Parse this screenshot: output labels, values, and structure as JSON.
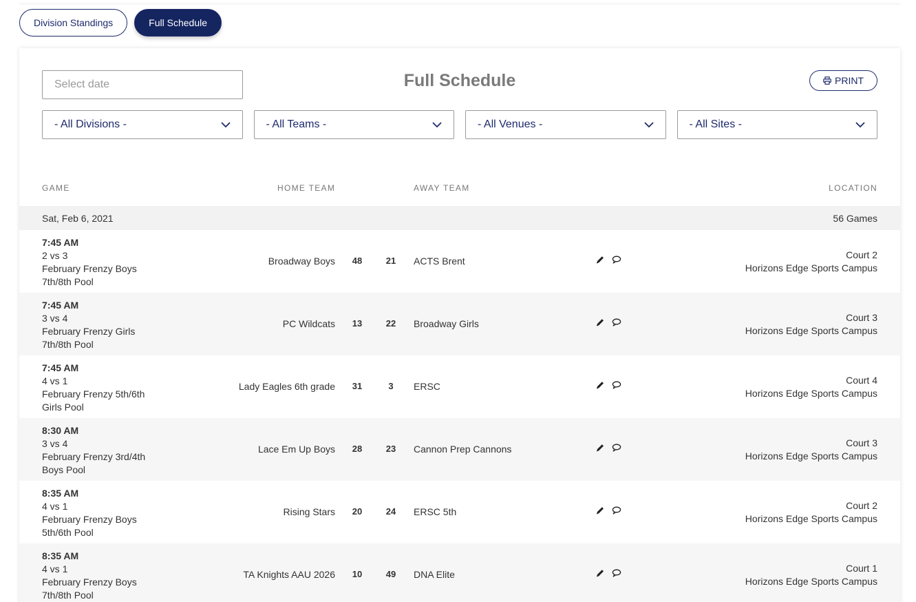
{
  "tabs": [
    {
      "label": "Division Standings",
      "active": false
    },
    {
      "label": "Full Schedule",
      "active": true
    }
  ],
  "card": {
    "title": "Full Schedule",
    "date_placeholder": "Select date",
    "print_label": "PRINT",
    "print_icon": "printer-icon"
  },
  "filters": [
    {
      "label": "- All Divisions -"
    },
    {
      "label": "- All Teams -"
    },
    {
      "label": "- All Venues -"
    },
    {
      "label": "- All Sites -"
    }
  ],
  "columns": {
    "game": "GAME",
    "home": "HOME TEAM",
    "away": "AWAY TEAM",
    "location": "LOCATION"
  },
  "date_group": {
    "date": "Sat, Feb 6, 2021",
    "count": "56 Games"
  },
  "games": [
    {
      "time": "7:45 AM",
      "matchup": "2 vs 3",
      "division": "February Frenzy Boys 7th/8th Pool",
      "home": "Broadway Boys",
      "home_score": "48",
      "away_score": "21",
      "away": "ACTS Brent",
      "court": "Court 2",
      "site": "Horizons Edge Sports Campus"
    },
    {
      "time": "7:45 AM",
      "matchup": "3 vs 4",
      "division": "February Frenzy Girls 7th/8th Pool",
      "home": "PC Wildcats",
      "home_score": "13",
      "away_score": "22",
      "away": "Broadway Girls",
      "court": "Court 3",
      "site": "Horizons Edge Sports Campus"
    },
    {
      "time": "7:45 AM",
      "matchup": "4 vs 1",
      "division": "February Frenzy 5th/6th Girls Pool",
      "home": "Lady Eagles 6th grade",
      "home_score": "31",
      "away_score": "3",
      "away": "ERSC",
      "court": "Court 4",
      "site": "Horizons Edge Sports Campus"
    },
    {
      "time": "8:30 AM",
      "matchup": "3 vs 4",
      "division": "February Frenzy 3rd/4th Boys Pool",
      "home": "Lace Em Up Boys",
      "home_score": "28",
      "away_score": "23",
      "away": "Cannon Prep Cannons",
      "court": "Court 3",
      "site": "Horizons Edge Sports Campus"
    },
    {
      "time": "8:35 AM",
      "matchup": "4 vs 1",
      "division": "February Frenzy Boys 5th/6th Pool",
      "home": "Rising Stars",
      "home_score": "20",
      "away_score": "24",
      "away": "ERSC 5th",
      "court": "Court 2",
      "site": "Horizons Edge Sports Campus"
    },
    {
      "time": "8:35 AM",
      "matchup": "4 vs 1",
      "division": "February Frenzy Boys 7th/8th Pool",
      "home": "TA Knights AAU 2026",
      "home_score": "10",
      "away_score": "49",
      "away": "DNA Elite",
      "court": "Court 1",
      "site": "Horizons Edge Sports Campus"
    }
  ],
  "colors": {
    "brand_navy": "#142560",
    "muted_text": "#777777",
    "band_gray": "#f2f2f2"
  }
}
